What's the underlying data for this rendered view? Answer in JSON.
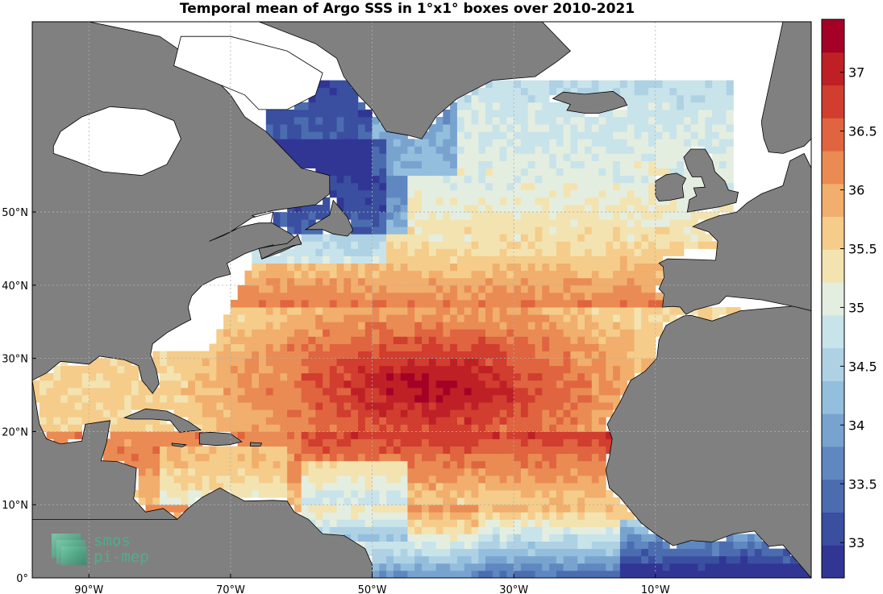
{
  "title": "Temporal mean of Argo SSS in 1°x1° boxes over 2010-2021",
  "map": {
    "lon_range": [
      -98,
      12
    ],
    "lat_range": [
      0,
      76
    ],
    "lon_ticks": [
      {
        "value": -90,
        "label": "90°W"
      },
      {
        "value": -70,
        "label": "70°W"
      },
      {
        "value": -50,
        "label": "50°W"
      },
      {
        "value": -30,
        "label": "30°W"
      },
      {
        "value": -10,
        "label": "10°W"
      }
    ],
    "lat_ticks": [
      {
        "value": 0,
        "label": "0°"
      },
      {
        "value": 10,
        "label": "10°N"
      },
      {
        "value": 20,
        "label": "20°N"
      },
      {
        "value": 30,
        "label": "30°N"
      },
      {
        "value": 40,
        "label": "40°N"
      },
      {
        "value": 50,
        "label": "50°N"
      }
    ],
    "grid": "dotted",
    "land_color": "#808080",
    "ocean_nodata_color": "#ffffff"
  },
  "colorbar": {
    "min": 32.7,
    "max": 37.45,
    "ticks": [
      "33",
      "33.5",
      "34",
      "34.5",
      "35",
      "35.5",
      "36",
      "36.5",
      "37"
    ],
    "colors": [
      "#313695",
      "#3a4fa0",
      "#4c6cb0",
      "#5f87c0",
      "#79a3cf",
      "#94bedd",
      "#aed2e4",
      "#c8e3ea",
      "#e4eee0",
      "#f3e3b0",
      "#f5cc8a",
      "#f1ae6c",
      "#ea8b53",
      "#e0643f",
      "#d13d2f",
      "#bf2026",
      "#a50026"
    ]
  },
  "logo": {
    "line1": "smos",
    "line2": "pi-mep"
  }
}
